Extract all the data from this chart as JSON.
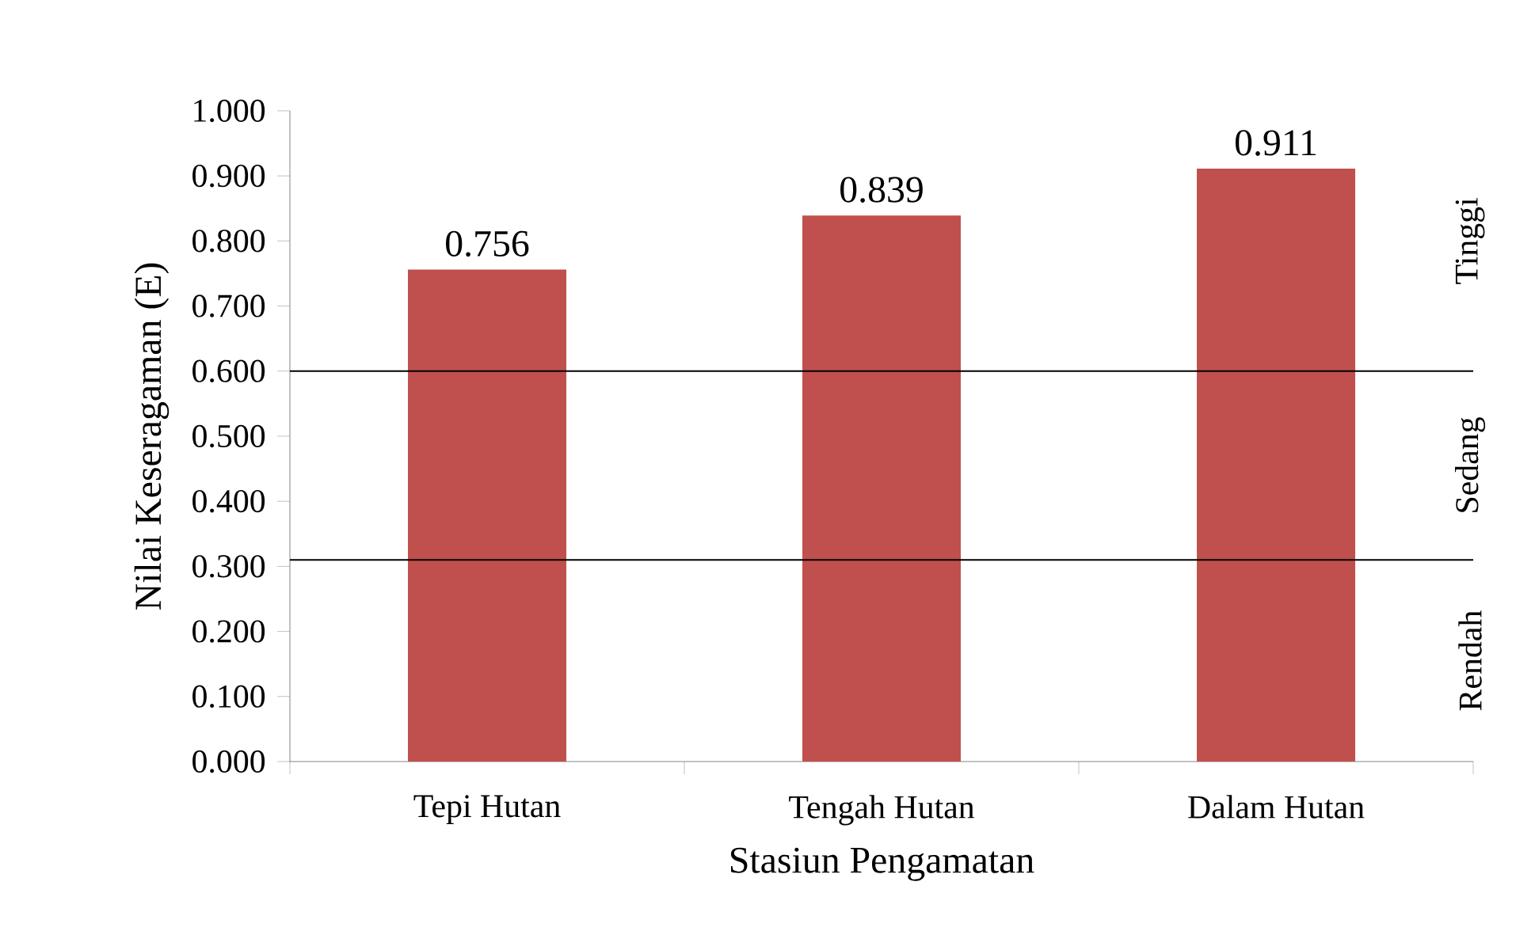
{
  "chart_data": {
    "type": "bar",
    "xlabel": "Stasiun Pengamatan",
    "ylabel": "Nilai Keseragaman (E)",
    "categories": [
      "Tepi Hutan",
      "Tengah Hutan",
      "Dalam Hutan"
    ],
    "values": [
      0.756,
      0.839,
      0.911
    ],
    "value_labels": [
      "0.756",
      "0.839",
      "0.911"
    ],
    "color": "#c0504d",
    "ylim": [
      0,
      1
    ],
    "yticks": [
      {
        "value": 0,
        "label": "0.000"
      },
      {
        "value": 0.1,
        "label": "0.100"
      },
      {
        "value": 0.2,
        "label": "0.200"
      },
      {
        "value": 0.3,
        "label": "0.300"
      },
      {
        "value": 0.4,
        "label": "0.400"
      },
      {
        "value": 0.5,
        "label": "0.500"
      },
      {
        "value": 0.6,
        "label": "0.600"
      },
      {
        "value": 0.7,
        "label": "0.700"
      },
      {
        "value": 0.8,
        "label": "0.800"
      },
      {
        "value": 0.9,
        "label": "0.900"
      },
      {
        "value": 1,
        "label": "1.000"
      }
    ],
    "ref_lines": [
      {
        "axis": "y",
        "value": 0.31,
        "color": "#000000"
      },
      {
        "axis": "y",
        "value": 0.6,
        "color": "#000000"
      }
    ],
    "annotations": [
      "Rendah",
      "Sedang",
      "Tinggi"
    ],
    "grid": false
  }
}
